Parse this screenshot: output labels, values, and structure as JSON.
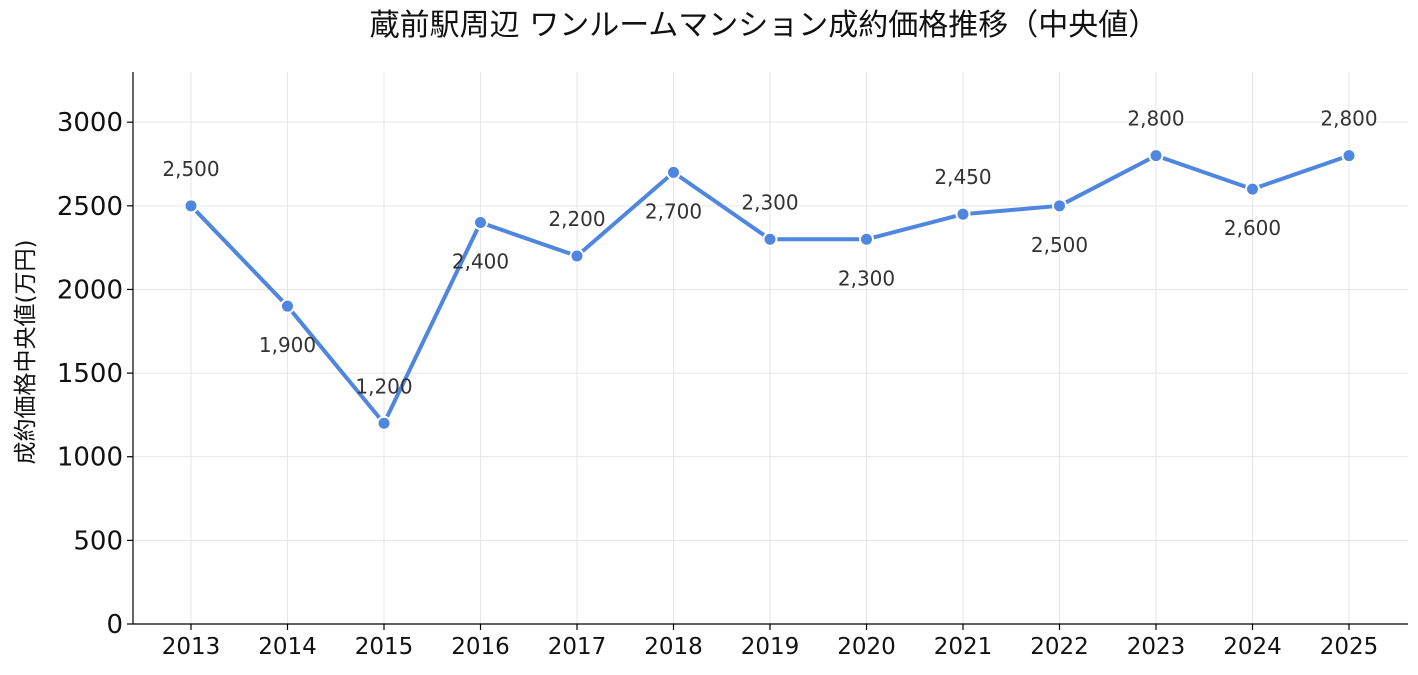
{
  "chart_data": {
    "type": "line",
    "title": "蔵前駅周辺 ワンルームマンション成約価格推移（中央値）",
    "xlabel": "",
    "ylabel": "成約価格中央値(万円)",
    "categories": [
      "2013",
      "2014",
      "2015",
      "2016",
      "2017",
      "2018",
      "2019",
      "2020",
      "2021",
      "2022",
      "2023",
      "2024",
      "2025"
    ],
    "series": [
      {
        "values": [
          2500,
          1900,
          1200,
          2400,
          2200,
          2700,
          2300,
          2300,
          2450,
          2500,
          2800,
          2600,
          2800
        ],
        "color": "#4f86e0"
      }
    ],
    "data_labels": [
      "2,500",
      "1,900",
      "1,200",
      "2,400",
      "2,200",
      "2,700",
      "2,300",
      "2,300",
      "2,450",
      "2,500",
      "2,800",
      "2,600",
      "2,800"
    ],
    "label_position": [
      "above",
      "below",
      "above",
      "below",
      "above",
      "below",
      "above",
      "below",
      "above",
      "below",
      "above",
      "below",
      "above"
    ],
    "y_ticks": [
      "0",
      "500",
      "1000",
      "1500",
      "2000",
      "2500",
      "3000"
    ],
    "ylim": [
      0,
      3300
    ],
    "grid": true,
    "legend": "none"
  }
}
